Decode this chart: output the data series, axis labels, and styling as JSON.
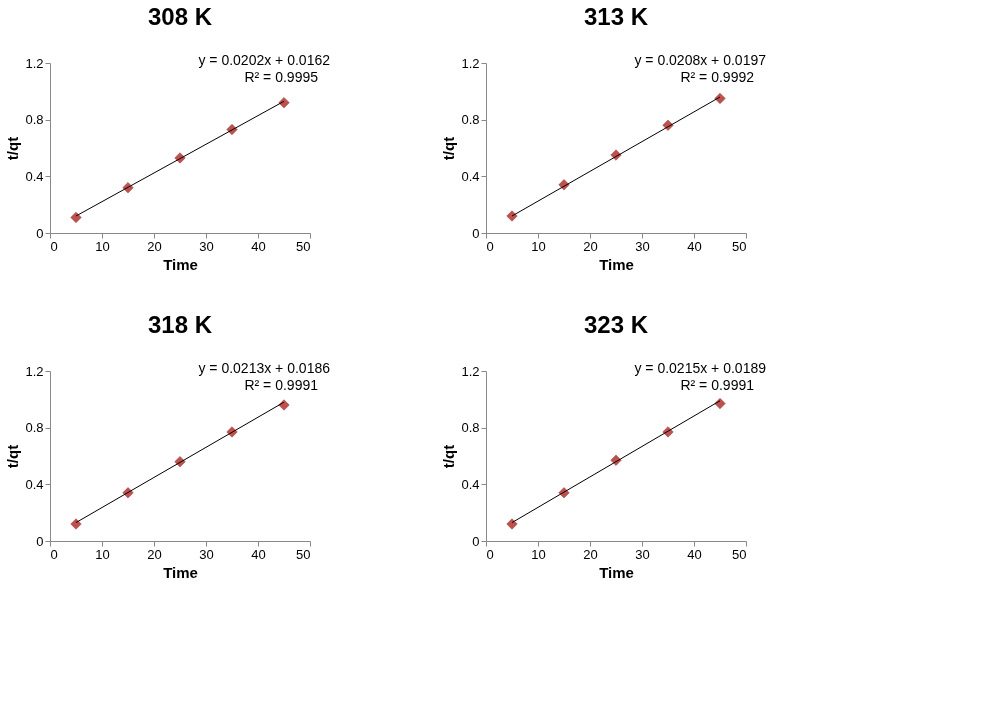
{
  "chart_data": [
    {
      "type": "scatter",
      "title": "308 K",
      "xlabel": "Time",
      "ylabel": "t/qt",
      "xlim": [
        0,
        50
      ],
      "xticks": [
        0,
        10,
        20,
        30,
        40,
        50
      ],
      "ylim": [
        0,
        1.2
      ],
      "yticks": [
        0,
        0.4,
        0.8,
        1.2
      ],
      "grid": false,
      "annotations": [
        "y = 0.0202x + 0.0162",
        "R² = 0.9995"
      ],
      "series": [
        {
          "marker": "diamond",
          "x": [
            5,
            15,
            25,
            35,
            45
          ],
          "values": [
            0.11,
            0.32,
            0.53,
            0.73,
            0.92
          ],
          "color": "#c0504d"
        },
        {
          "type": "line",
          "x": [
            5,
            45
          ],
          "values": [
            0.12,
            0.93
          ],
          "color": "#000000"
        }
      ]
    },
    {
      "type": "scatter",
      "title": "313 K",
      "xlabel": "Time",
      "ylabel": "t/qt",
      "xlim": [
        0,
        50
      ],
      "xticks": [
        0,
        10,
        20,
        30,
        40,
        50
      ],
      "ylim": [
        0,
        1.2
      ],
      "yticks": [
        0,
        0.4,
        0.8,
        1.2
      ],
      "grid": false,
      "annotations": [
        "y = 0.0208x + 0.0197",
        "R² = 0.9992"
      ],
      "series": [
        {
          "marker": "diamond",
          "x": [
            5,
            15,
            25,
            35,
            45
          ],
          "values": [
            0.12,
            0.34,
            0.55,
            0.76,
            0.95
          ],
          "color": "#c0504d"
        },
        {
          "type": "line",
          "x": [
            5,
            45
          ],
          "values": [
            0.12,
            0.96
          ],
          "color": "#000000"
        }
      ]
    },
    {
      "type": "scatter",
      "title": "318 K",
      "xlabel": "Time",
      "ylabel": "t/qt",
      "xlim": [
        0,
        50
      ],
      "xticks": [
        0,
        10,
        20,
        30,
        40,
        50
      ],
      "ylim": [
        0,
        1.2
      ],
      "yticks": [
        0,
        0.4,
        0.8,
        1.2
      ],
      "grid": false,
      "annotations": [
        "y = 0.0213x + 0.0186",
        "R² = 0.9991"
      ],
      "series": [
        {
          "marker": "diamond",
          "x": [
            5,
            15,
            25,
            35,
            45
          ],
          "values": [
            0.12,
            0.34,
            0.56,
            0.77,
            0.96
          ],
          "color": "#c0504d"
        },
        {
          "type": "line",
          "x": [
            5,
            45
          ],
          "values": [
            0.13,
            0.98
          ],
          "color": "#000000"
        }
      ]
    },
    {
      "type": "scatter",
      "title": "323 K",
      "xlabel": "Time",
      "ylabel": "t/qt",
      "xlim": [
        0,
        50
      ],
      "xticks": [
        0,
        10,
        20,
        30,
        40,
        50
      ],
      "ylim": [
        0,
        1.2
      ],
      "yticks": [
        0,
        0.4,
        0.8,
        1.2
      ],
      "grid": false,
      "annotations": [
        "y = 0.0215x + 0.0189",
        "R² = 0.9991"
      ],
      "series": [
        {
          "marker": "diamond",
          "x": [
            5,
            15,
            25,
            35,
            45
          ],
          "values": [
            0.12,
            0.34,
            0.57,
            0.77,
            0.97
          ],
          "color": "#c0504d"
        },
        {
          "type": "line",
          "x": [
            5,
            45
          ],
          "values": [
            0.13,
            0.99
          ],
          "color": "#000000"
        }
      ]
    }
  ]
}
